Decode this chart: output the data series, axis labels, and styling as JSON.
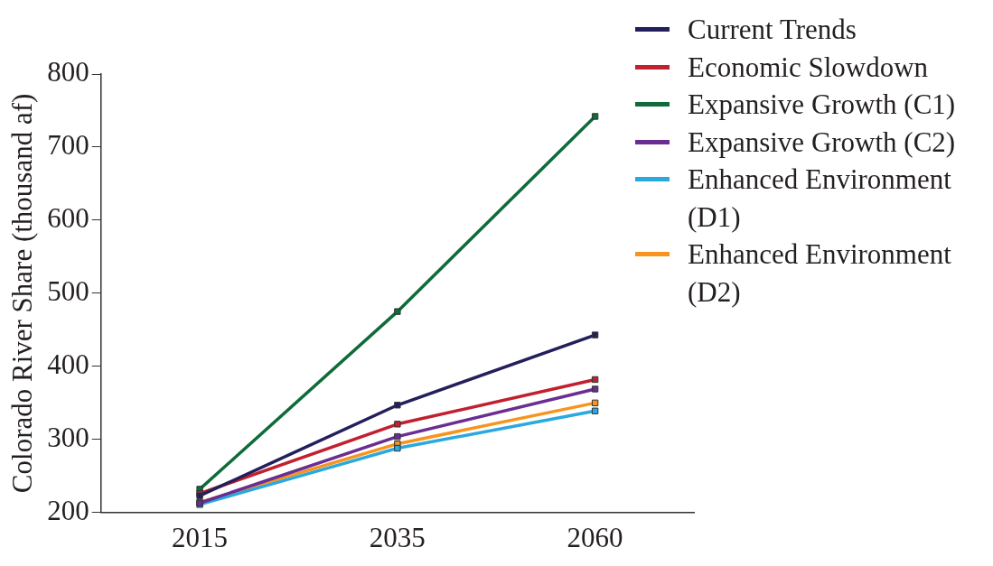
{
  "chart_data": {
    "type": "line",
    "categories": [
      "2015",
      "2035",
      "2060"
    ],
    "ylabel": "Colorado River Share (thousand af)",
    "ylim": [
      200,
      800
    ],
    "yticks": [
      200,
      300,
      400,
      500,
      600,
      700,
      800
    ],
    "grid": false,
    "legend": "top right",
    "marker": "square",
    "line_style": "solid",
    "series": [
      {
        "name": "Current Trends",
        "color": "#231f5c",
        "values": [
          223,
          347,
          443
        ]
      },
      {
        "name": "Economic Slowdown",
        "color": "#c1202f",
        "values": [
          226,
          321,
          382
        ]
      },
      {
        "name": "Expansive Growth (C1)",
        "color": "#0f6b3a",
        "values": [
          232,
          475,
          742
        ]
      },
      {
        "name": "Expansive Growth (C2)",
        "color": "#6a2d91",
        "values": [
          213,
          304,
          369
        ]
      },
      {
        "name": "Enhanced Environment (D1)",
        "color": "#29a9e0",
        "values": [
          211,
          288,
          339
        ]
      },
      {
        "name": "Enhanced Environment (D2)",
        "color": "#f7941d",
        "values": [
          214,
          294,
          350
        ]
      }
    ]
  }
}
